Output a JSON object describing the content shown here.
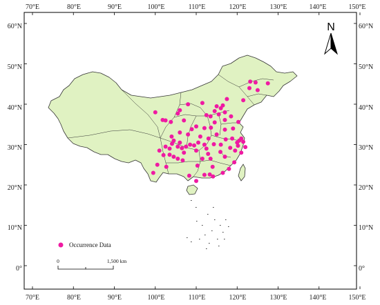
{
  "map": {
    "lon_ticks": [
      "70°E",
      "80°E",
      "90°E",
      "100°E",
      "110°E",
      "120°E",
      "130°E",
      "140°E",
      "150°E"
    ],
    "lat_ticks": [
      "60°N",
      "50°N",
      "40°N",
      "30°N",
      "20°N",
      "10°N",
      "0°"
    ],
    "north_arrow_letter": "N",
    "legend_label": "Occurrence Data",
    "scale_start": "0",
    "scale_end": "1,500 km",
    "colors": {
      "land": "#e0f2c2",
      "border": "#333333",
      "points": "#ef1aa2",
      "frame": "#000000"
    },
    "occurrence_points": [
      {
        "lon": 123.2,
        "lat": 46.1
      },
      {
        "lon": 124.5,
        "lat": 45.9
      },
      {
        "lon": 127.5,
        "lat": 45.7
      },
      {
        "lon": 123.0,
        "lat": 44.5
      },
      {
        "lon": 125.0,
        "lat": 44.0
      },
      {
        "lon": 121.5,
        "lat": 41.5
      },
      {
        "lon": 117.5,
        "lat": 41.8
      },
      {
        "lon": 116.5,
        "lat": 40.2
      },
      {
        "lon": 115.0,
        "lat": 40.0
      },
      {
        "lon": 114.5,
        "lat": 38.8
      },
      {
        "lon": 116.0,
        "lat": 39.5
      },
      {
        "lon": 117.0,
        "lat": 38.5
      },
      {
        "lon": 115.5,
        "lat": 38.0
      },
      {
        "lon": 113.5,
        "lat": 37.5
      },
      {
        "lon": 112.5,
        "lat": 37.8
      },
      {
        "lon": 111.5,
        "lat": 40.8
      },
      {
        "lon": 108.0,
        "lat": 40.5
      },
      {
        "lon": 106.0,
        "lat": 39.0
      },
      {
        "lon": 105.5,
        "lat": 38.2
      },
      {
        "lon": 103.8,
        "lat": 36.1
      },
      {
        "lon": 102.5,
        "lat": 36.5
      },
      {
        "lon": 107.0,
        "lat": 36.5
      },
      {
        "lon": 108.9,
        "lat": 34.3
      },
      {
        "lon": 110.0,
        "lat": 35.0
      },
      {
        "lon": 112.0,
        "lat": 34.6
      },
      {
        "lon": 113.6,
        "lat": 34.7
      },
      {
        "lon": 114.5,
        "lat": 36.0
      },
      {
        "lon": 117.0,
        "lat": 36.6
      },
      {
        "lon": 118.5,
        "lat": 37.5
      },
      {
        "lon": 120.3,
        "lat": 36.1
      },
      {
        "lon": 118.8,
        "lat": 32.0
      },
      {
        "lon": 120.5,
        "lat": 31.5
      },
      {
        "lon": 121.5,
        "lat": 31.2
      },
      {
        "lon": 120.2,
        "lat": 30.2
      },
      {
        "lon": 119.5,
        "lat": 29.0
      },
      {
        "lon": 121.0,
        "lat": 28.5
      },
      {
        "lon": 117.2,
        "lat": 31.8
      },
      {
        "lon": 116.0,
        "lat": 30.5
      },
      {
        "lon": 114.3,
        "lat": 30.6
      },
      {
        "lon": 112.0,
        "lat": 30.5
      },
      {
        "lon": 110.5,
        "lat": 31.0
      },
      {
        "lon": 108.5,
        "lat": 30.5
      },
      {
        "lon": 106.5,
        "lat": 29.6
      },
      {
        "lon": 105.5,
        "lat": 30.0
      },
      {
        "lon": 104.1,
        "lat": 30.7
      },
      {
        "lon": 103.5,
        "lat": 29.5
      },
      {
        "lon": 102.5,
        "lat": 30.0
      },
      {
        "lon": 104.5,
        "lat": 31.5
      },
      {
        "lon": 106.0,
        "lat": 31.0
      },
      {
        "lon": 107.5,
        "lat": 30.0
      },
      {
        "lon": 107.0,
        "lat": 28.5
      },
      {
        "lon": 106.7,
        "lat": 26.6
      },
      {
        "lon": 105.5,
        "lat": 27.0
      },
      {
        "lon": 104.5,
        "lat": 27.5
      },
      {
        "lon": 103.5,
        "lat": 28.0
      },
      {
        "lon": 102.7,
        "lat": 25.0
      },
      {
        "lon": 100.5,
        "lat": 25.5
      },
      {
        "lon": 99.5,
        "lat": 23.5
      },
      {
        "lon": 108.3,
        "lat": 22.8
      },
      {
        "lon": 110.3,
        "lat": 25.3
      },
      {
        "lon": 112.9,
        "lat": 28.2
      },
      {
        "lon": 111.5,
        "lat": 27.0
      },
      {
        "lon": 113.5,
        "lat": 27.0
      },
      {
        "lon": 115.9,
        "lat": 28.7
      },
      {
        "lon": 117.0,
        "lat": 27.5
      },
      {
        "lon": 119.3,
        "lat": 26.1
      },
      {
        "lon": 118.0,
        "lat": 24.5
      },
      {
        "lon": 116.5,
        "lat": 23.5
      },
      {
        "lon": 113.3,
        "lat": 23.1
      },
      {
        "lon": 114.1,
        "lat": 22.6
      },
      {
        "lon": 112.0,
        "lat": 23.0
      },
      {
        "lon": 110.0,
        "lat": 21.5
      },
      {
        "lon": 109.5,
        "lat": 30.3
      },
      {
        "lon": 111.0,
        "lat": 32.5
      },
      {
        "lon": 113.0,
        "lat": 32.0
      },
      {
        "lon": 115.0,
        "lat": 33.0
      },
      {
        "lon": 117.0,
        "lat": 34.2
      },
      {
        "lon": 119.0,
        "lat": 34.5
      },
      {
        "lon": 121.0,
        "lat": 32.0
      },
      {
        "lon": 122.0,
        "lat": 29.9
      },
      {
        "lon": 101.8,
        "lat": 36.6
      },
      {
        "lon": 100.0,
        "lat": 38.5
      },
      {
        "lon": 104.0,
        "lat": 32.5
      },
      {
        "lon": 102.0,
        "lat": 27.9
      },
      {
        "lon": 101.0,
        "lat": 29.0
      },
      {
        "lon": 106.0,
        "lat": 33.5
      },
      {
        "lon": 108.0,
        "lat": 33.0
      },
      {
        "lon": 110.0,
        "lat": 29.0
      },
      {
        "lon": 112.5,
        "lat": 29.5
      },
      {
        "lon": 118.3,
        "lat": 29.7
      },
      {
        "lon": 120.0,
        "lat": 31.0
      },
      {
        "lon": 114.0,
        "lat": 25.0
      }
    ]
  }
}
